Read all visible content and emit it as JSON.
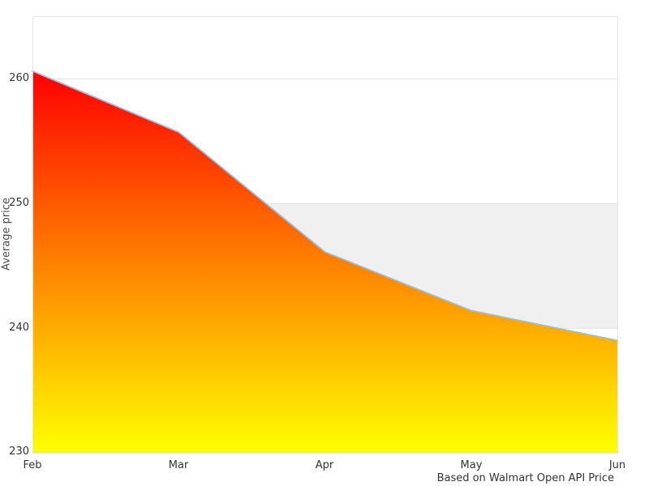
{
  "chart_data": {
    "type": "area",
    "categories": [
      "Feb",
      "Mar",
      "Apr",
      "May",
      "Jun"
    ],
    "values": [
      260.6,
      255.7,
      246.1,
      241.4,
      239.0
    ],
    "title": "",
    "xlabel": "",
    "ylabel": "Average price",
    "ylim": [
      230,
      265
    ],
    "yticks": [
      260,
      250,
      240,
      230
    ],
    "grid": "horizontal",
    "legend": "none",
    "caption": "Based on Walmart Open API Price",
    "plot_band": {
      "from": 240,
      "to": 250,
      "color": "#f0f0f0"
    },
    "colors": {
      "gradient_top": "#ff0000",
      "gradient_bottom": "#ffff00",
      "line": "#94bfe4",
      "grid": "#e6e6e6",
      "band": "#f0f0f0",
      "text": "#333333",
      "background": "#ffffff"
    }
  }
}
